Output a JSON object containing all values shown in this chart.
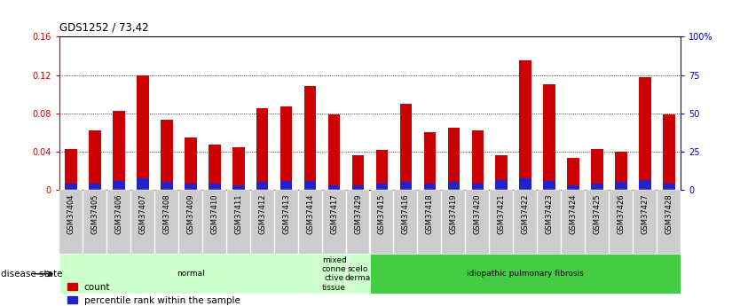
{
  "title": "GDS1252 / 73,42",
  "samples": [
    "GSM37404",
    "GSM37405",
    "GSM37406",
    "GSM37407",
    "GSM37408",
    "GSM37409",
    "GSM37410",
    "GSM37411",
    "GSM37412",
    "GSM37413",
    "GSM37414",
    "GSM37417",
    "GSM37429",
    "GSM37415",
    "GSM37416",
    "GSM37418",
    "GSM37419",
    "GSM37420",
    "GSM37421",
    "GSM37422",
    "GSM37423",
    "GSM37424",
    "GSM37425",
    "GSM37426",
    "GSM37427",
    "GSM37428"
  ],
  "count_values": [
    0.043,
    0.062,
    0.082,
    0.12,
    0.073,
    0.055,
    0.047,
    0.044,
    0.085,
    0.087,
    0.108,
    0.079,
    0.036,
    0.042,
    0.09,
    0.06,
    0.065,
    0.062,
    0.036,
    0.135,
    0.11,
    0.033,
    0.043,
    0.04,
    0.118,
    0.079
  ],
  "percentile_values": [
    0.006,
    0.006,
    0.009,
    0.012,
    0.008,
    0.006,
    0.006,
    0.005,
    0.008,
    0.009,
    0.009,
    0.005,
    0.005,
    0.006,
    0.008,
    0.006,
    0.008,
    0.006,
    0.01,
    0.012,
    0.009,
    0.005,
    0.006,
    0.008,
    0.01,
    0.006
  ],
  "count_color": "#cc0000",
  "percentile_color": "#2222cc",
  "bar_width": 0.5,
  "ylim_left": [
    0,
    0.16
  ],
  "ylim_right": [
    0,
    100
  ],
  "yticks_left": [
    0,
    0.04,
    0.08,
    0.12,
    0.16
  ],
  "yticks_right": [
    0,
    25,
    50,
    75,
    100
  ],
  "ytick_labels_left": [
    "0",
    "0.04",
    "0.08",
    "0.12",
    "0.16"
  ],
  "ytick_labels_right": [
    "0",
    "25",
    "50",
    "75",
    "100%"
  ],
  "grid_color": "black",
  "disease_states": [
    {
      "label": "normal",
      "start": 0,
      "end": 11,
      "color": "#ccffcc"
    },
    {
      "label": "mixed\nconne\nctive\ntissue",
      "start": 11,
      "end": 12,
      "color": "#ccffcc"
    },
    {
      "label": "scelo\nderma",
      "start": 12,
      "end": 13,
      "color": "#ccffcc"
    },
    {
      "label": "idiopathic pulmonary fibrosis",
      "start": 13,
      "end": 26,
      "color": "#44cc44"
    }
  ],
  "disease_state_label": "disease state",
  "left_axis_color": "#cc0000",
  "right_axis_color": "#0000cc",
  "tick_label_bg_color": "#cccccc"
}
